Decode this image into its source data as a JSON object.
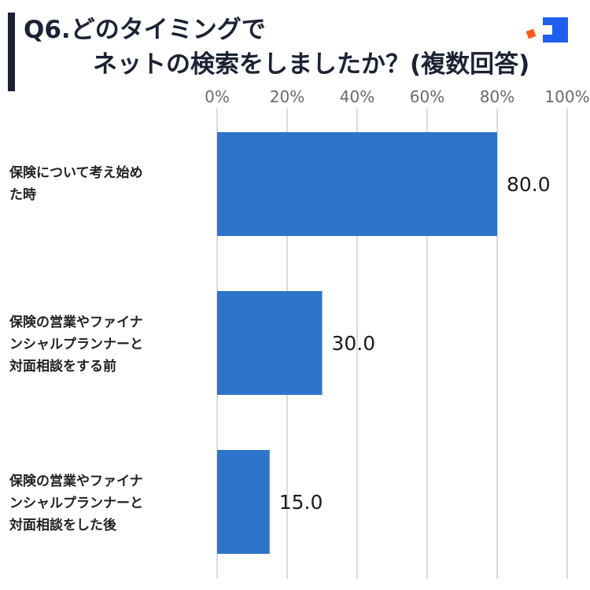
{
  "title": {
    "line1": "Q6.どのタイミングで",
    "line2": "ネットの検索をしましたか？(複数回答)"
  },
  "colors": {
    "bar": "#2e74c9",
    "title": "#1c2233",
    "logo_blue": "#1f5ff0",
    "logo_orange": "#ff5a1f",
    "grid": "#cfcfcf"
  },
  "chart_data": {
    "type": "bar",
    "orientation": "horizontal",
    "categories": [
      "保険について考え始め\nた時",
      "保険の営業やファイナ\nンシャルプランナーと\n対面相談をする前",
      "保険の営業やファイナ\nンシャルプランナーと\n対面相談をした後"
    ],
    "values": [
      80.0,
      30.0,
      15.0
    ],
    "value_labels": [
      "80.0",
      "30.0",
      "15.0"
    ],
    "xlim": [
      0,
      100
    ],
    "x_ticks": [
      0,
      20,
      40,
      60,
      80,
      100
    ],
    "x_tick_labels": [
      "0%",
      "20%",
      "40%",
      "60%",
      "80%",
      "100%"
    ],
    "grid": true,
    "tick_position": "top"
  }
}
